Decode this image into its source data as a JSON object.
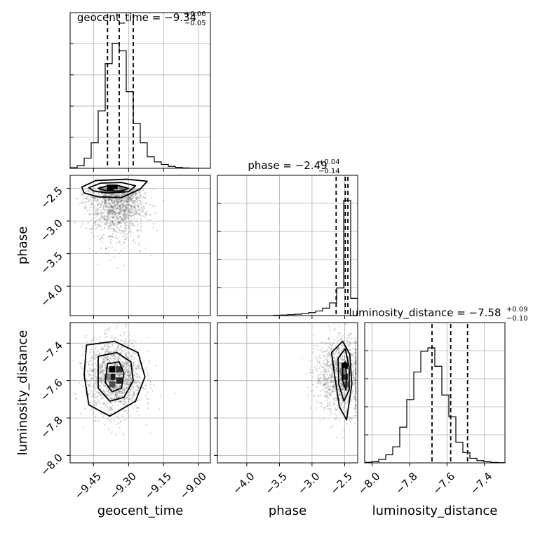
{
  "chart_data": {
    "type": "corner",
    "parameters": [
      "geocent_time",
      "phase",
      "luminosity_distance"
    ],
    "axis_labels": {
      "geocent_time": "geocent_time",
      "phase": "phase",
      "luminosity_distance": "luminosity_distance"
    },
    "ranges": {
      "geocent_time": [
        -9.55,
        -8.95
      ],
      "phase": [
        -4.45,
        -2.3
      ],
      "luminosity_distance": [
        -8.04,
        -7.29
      ]
    },
    "ticks": {
      "geocent_time": [
        -9.45,
        -9.3,
        -9.15,
        -9.0
      ],
      "phase": [
        -4.0,
        -3.5,
        -3.0,
        -2.5
      ],
      "luminosity_distance": [
        -8.0,
        -7.8,
        -7.6,
        -7.4
      ]
    },
    "tick_labels": {
      "geocent_time": [
        "−9.45",
        "−9.30",
        "−9.15",
        "−9.00"
      ],
      "phase": [
        "−4.0",
        "−3.5",
        "−3.0",
        "−2.5"
      ],
      "luminosity_distance": [
        "−8.0",
        "−7.8",
        "−7.6",
        "−7.4"
      ]
    },
    "titles": {
      "geocent_time": {
        "text": "geocent_time = −9.34",
        "plus": "+0.06",
        "minus": "−0.05"
      },
      "phase": {
        "text": "phase = −2.49",
        "plus": "+0.04",
        "minus": "−0.14"
      },
      "luminosity_distance": {
        "text": "luminosity_distance = −7.58",
        "plus": "+0.09",
        "minus": "−0.10"
      }
    },
    "quantiles": {
      "geocent_time": [
        -9.39,
        -9.34,
        -9.28
      ],
      "phase": [
        -2.63,
        -2.49,
        -2.45
      ],
      "luminosity_distance": [
        -7.68,
        -7.58,
        -7.49
      ]
    },
    "histograms": {
      "geocent_time": {
        "range": [
          -9.55,
          -8.95
        ],
        "bins": 20,
        "counts": [
          0.005,
          0.02,
          0.08,
          0.2,
          0.45,
          0.82,
          0.98,
          0.92,
          0.6,
          0.35,
          0.2,
          0.09,
          0.05,
          0.03,
          0.015,
          0.008,
          0.003,
          0.001,
          0,
          0
        ]
      },
      "phase": {
        "range": [
          -4.45,
          -2.3
        ],
        "bins": 20,
        "counts": [
          0,
          0,
          0,
          0,
          0,
          0,
          0,
          0,
          0.003,
          0.005,
          0.008,
          0.012,
          0.018,
          0.026,
          0.04,
          0.065,
          0.11,
          0.24,
          1.0,
          0.15
        ]
      },
      "luminosity_distance": {
        "range": [
          -8.04,
          -7.29
        ],
        "bins": 20,
        "counts": [
          0.005,
          0.01,
          0.03,
          0.07,
          0.14,
          0.31,
          0.55,
          0.79,
          0.97,
          1.0,
          0.84,
          0.59,
          0.4,
          0.18,
          0.09,
          0.04,
          0.02,
          0.01,
          0.004,
          0.002
        ]
      }
    },
    "pairs": [
      {
        "x": "geocent_time",
        "y": "phase",
        "density_cells": [
          [
            -9.36,
            -2.49,
            1.0
          ],
          [
            -9.38,
            -2.49,
            1.0
          ],
          [
            -9.33,
            -2.52,
            0.55
          ],
          [
            -9.41,
            -2.52,
            0.4
          ],
          [
            -9.35,
            -2.56,
            0.25
          ],
          [
            -9.3,
            -2.55,
            0.2
          ]
        ],
        "contours": [
          [
            [
              -9.43,
              -2.5
            ],
            [
              -9.39,
              -2.46
            ],
            [
              -9.34,
              -2.46
            ],
            [
              -9.3,
              -2.5
            ],
            [
              -9.33,
              -2.54
            ],
            [
              -9.39,
              -2.54
            ]
          ],
          [
            [
              -9.47,
              -2.49
            ],
            [
              -9.42,
              -2.42
            ],
            [
              -9.33,
              -2.41
            ],
            [
              -9.27,
              -2.46
            ],
            [
              -9.3,
              -2.55
            ],
            [
              -9.39,
              -2.57
            ],
            [
              -9.45,
              -2.54
            ]
          ],
          [
            [
              -9.5,
              -2.48
            ],
            [
              -9.44,
              -2.38
            ],
            [
              -9.31,
              -2.36
            ],
            [
              -9.22,
              -2.39
            ],
            [
              -9.25,
              -2.51
            ],
            [
              -9.33,
              -2.64
            ],
            [
              -9.43,
              -2.63
            ],
            [
              -9.49,
              -2.57
            ]
          ]
        ],
        "scatter": {
          "cx": -9.35,
          "cy": -2.75,
          "sx": 0.06,
          "sy": 0.35,
          "count": 1400
        }
      },
      {
        "x": "geocent_time",
        "y": "luminosity_distance",
        "density_cells": [
          [
            -9.37,
            -7.54,
            1.0
          ],
          [
            -9.34,
            -7.54,
            0.8
          ],
          [
            -9.37,
            -7.58,
            0.9
          ],
          [
            -9.34,
            -7.6,
            0.85
          ],
          [
            -9.37,
            -7.62,
            0.7
          ],
          [
            -9.39,
            -7.58,
            0.5
          ]
        ],
        "contours": [
          [
            [
              -9.39,
              -7.51
            ],
            [
              -9.34,
              -7.5
            ],
            [
              -9.32,
              -7.56
            ],
            [
              -9.33,
              -7.64
            ],
            [
              -9.37,
              -7.66
            ],
            [
              -9.4,
              -7.61
            ]
          ],
          [
            [
              -9.43,
              -7.47
            ],
            [
              -9.35,
              -7.45
            ],
            [
              -9.29,
              -7.5
            ],
            [
              -9.28,
              -7.6
            ],
            [
              -9.32,
              -7.69
            ],
            [
              -9.38,
              -7.71
            ],
            [
              -9.43,
              -7.64
            ]
          ],
          [
            [
              -9.48,
              -7.41
            ],
            [
              -9.36,
              -7.39
            ],
            [
              -9.26,
              -7.45
            ],
            [
              -9.23,
              -7.58
            ],
            [
              -9.27,
              -7.71
            ],
            [
              -9.38,
              -7.79
            ],
            [
              -9.47,
              -7.73
            ],
            [
              -9.49,
              -7.57
            ]
          ]
        ],
        "scatter": {
          "cx": -9.36,
          "cy": -7.58,
          "sx": 0.06,
          "sy": 0.1,
          "count": 1400
        }
      },
      {
        "x": "phase",
        "y": "luminosity_distance",
        "density_cells": [
          [
            -2.5,
            -7.52,
            1.0
          ],
          [
            -2.5,
            -7.58,
            0.85
          ],
          [
            -2.48,
            -7.62,
            0.6
          ],
          [
            -2.52,
            -7.55,
            0.5
          ]
        ],
        "contours": [
          [
            [
              -2.53,
              -7.52
            ],
            [
              -2.49,
              -7.5
            ],
            [
              -2.47,
              -7.58
            ],
            [
              -2.48,
              -7.65
            ],
            [
              -2.53,
              -7.6
            ]
          ],
          [
            [
              -2.6,
              -7.48
            ],
            [
              -2.49,
              -7.43
            ],
            [
              -2.43,
              -7.53
            ],
            [
              -2.43,
              -7.65
            ],
            [
              -2.51,
              -7.71
            ],
            [
              -2.59,
              -7.62
            ]
          ],
          [
            [
              -2.7,
              -7.45
            ],
            [
              -2.53,
              -7.39
            ],
            [
              -2.42,
              -7.46
            ],
            [
              -2.39,
              -7.62
            ],
            [
              -2.47,
              -7.81
            ],
            [
              -2.58,
              -7.74
            ],
            [
              -2.65,
              -7.58
            ]
          ]
        ],
        "scatter": {
          "cx": -2.55,
          "cy": -7.57,
          "sx": 0.2,
          "sy": 0.1,
          "count": 1100
        }
      }
    ]
  }
}
